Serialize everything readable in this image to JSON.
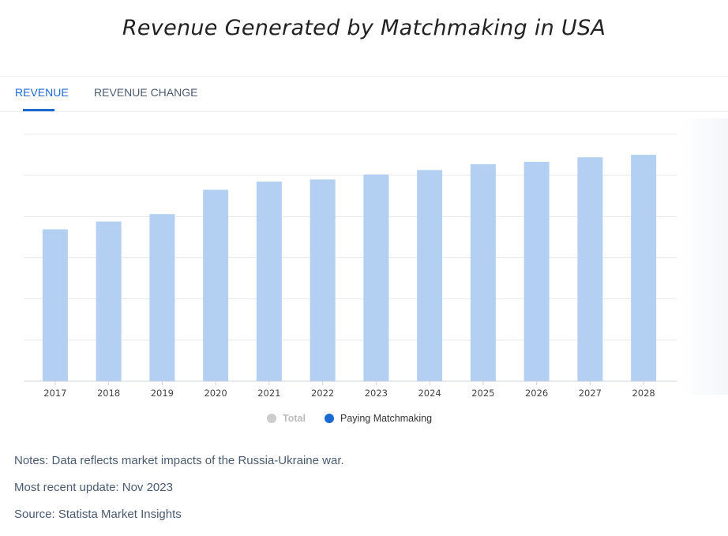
{
  "title": "Revenue Generated by Matchmaking in USA",
  "tabs": [
    {
      "label": "REVENUE",
      "active": true
    },
    {
      "label": "REVENUE CHANGE",
      "active": false
    }
  ],
  "legend": [
    {
      "label": "Total",
      "color": "#cccccc",
      "enabled": false
    },
    {
      "label": "Paying Matchmaking",
      "color": "#1a6ad2",
      "enabled": true
    }
  ],
  "notes": {
    "note": "Notes: Data reflects market impacts of the Russia-Ukraine war.",
    "update": "Most recent update: Nov 2023",
    "source": "Source: Statista Market Insights"
  },
  "chart_data": {
    "type": "bar",
    "title": "Revenue Generated by Matchmaking in USA",
    "xlabel": "",
    "ylabel": "",
    "categories": [
      "2017",
      "2018",
      "2019",
      "2020",
      "2021",
      "2022",
      "2023",
      "2024",
      "2025",
      "2026",
      "2027",
      "2028"
    ],
    "series": [
      {
        "name": "Paying Matchmaking",
        "values": [
          3.69,
          3.88,
          4.06,
          4.65,
          4.85,
          4.9,
          5.02,
          5.13,
          5.27,
          5.33,
          5.44,
          5.5
        ],
        "color": "#b3cff2"
      }
    ],
    "ylim": [
      0,
      6
    ],
    "y_tick_labels_shown": false,
    "grid": true,
    "legend_position": "bottom"
  }
}
